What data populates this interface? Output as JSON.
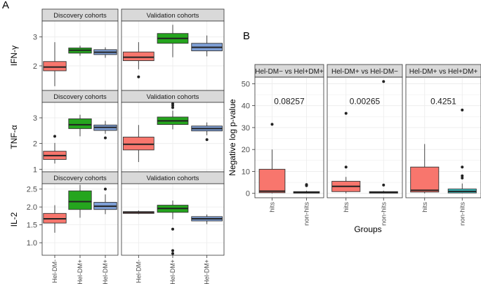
{
  "panel_labels": {
    "a": "A",
    "b": "B"
  },
  "colors": {
    "group1": "#F8766D",
    "group2": "#25A51E",
    "group3": "#7E9FD6",
    "nonhits_third": "#3BC3C4",
    "strip_fill": "#D9D9D9",
    "panel_bg": "#FFFFFF",
    "grid": "#EBEBEB",
    "border": "#333333"
  },
  "chart_data": [
    {
      "type": "box",
      "panel": "A",
      "title": "",
      "ylabels": [
        "IFN-γ",
        "TNF-α",
        "IL-2"
      ],
      "categories": [
        "Hel-DM-",
        "Hel-DM+",
        "Hel-DM+"
      ],
      "facets": [
        "Discovery cohorts",
        "Validation cohorts"
      ],
      "rows": [
        {
          "ylabel": "IFN-γ",
          "ylim": [
            1.15,
            3.55
          ],
          "yticks": [
            2,
            3
          ],
          "panels": [
            {
              "facet": "Discovery cohorts",
              "boxes": [
                {
                  "category": "Hel-DM-",
                  "min": 1.3,
                  "q1": 1.83,
                  "median": 1.96,
                  "q3": 2.15,
                  "max": 2.82,
                  "outliers": []
                },
                {
                  "category": "Hel-DM+",
                  "min": 2.35,
                  "q1": 2.44,
                  "median": 2.54,
                  "q3": 2.62,
                  "max": 2.7,
                  "outliers": []
                },
                {
                  "category": "Hel-DM+",
                  "min": 2.28,
                  "q1": 2.39,
                  "median": 2.47,
                  "q3": 2.56,
                  "max": 2.64,
                  "outliers": []
                }
              ]
            },
            {
              "facet": "Validation cohorts",
              "boxes": [
                {
                  "category": "Hel-DM-",
                  "min": 1.88,
                  "q1": 2.18,
                  "median": 2.3,
                  "q3": 2.48,
                  "max": 2.82,
                  "outliers": [
                    1.62
                  ]
                },
                {
                  "category": "Hel-DM+",
                  "min": 2.3,
                  "q1": 2.78,
                  "median": 2.95,
                  "q3": 3.12,
                  "max": 3.42,
                  "outliers": []
                },
                {
                  "category": "Hel-DM+",
                  "min": 2.33,
                  "q1": 2.52,
                  "median": 2.64,
                  "q3": 2.78,
                  "max": 3.05,
                  "outliers": []
                }
              ]
            }
          ]
        },
        {
          "ylabel": "TNF-α",
          "ylim": [
            0.9,
            3.6
          ],
          "yticks": [
            1,
            2,
            3
          ],
          "panels": [
            {
              "facet": "Discovery cohorts",
              "boxes": [
                {
                  "category": "Hel-DM-",
                  "min": 1.22,
                  "q1": 1.38,
                  "median": 1.53,
                  "q3": 1.7,
                  "max": 2.02,
                  "outliers": [
                    2.28
                  ]
                },
                {
                  "category": "Hel-DM+",
                  "min": 2.28,
                  "q1": 2.58,
                  "median": 2.73,
                  "q3": 2.96,
                  "max": 3.12,
                  "outliers": []
                },
                {
                  "category": "Hel-DM+",
                  "min": 2.38,
                  "q1": 2.51,
                  "median": 2.63,
                  "q3": 2.72,
                  "max": 2.88,
                  "outliers": [
                    2.22
                  ]
                }
              ]
            },
            {
              "facet": "Validation cohorts",
              "boxes": [
                {
                  "category": "Hel-DM-",
                  "min": 1.28,
                  "q1": 1.75,
                  "median": 1.97,
                  "q3": 2.25,
                  "max": 2.72,
                  "outliers": []
                },
                {
                  "category": "Hel-DM+",
                  "min": 2.55,
                  "q1": 2.74,
                  "median": 2.88,
                  "q3": 3.03,
                  "max": 3.28,
                  "outliers": [
                    3.4,
                    3.48,
                    3.55
                  ]
                },
                {
                  "category": "Hel-DM+",
                  "min": 2.32,
                  "q1": 2.49,
                  "median": 2.58,
                  "q3": 2.68,
                  "max": 2.82,
                  "outliers": [
                    2.15
                  ]
                }
              ]
            }
          ]
        },
        {
          "ylabel": "IL-2",
          "ylim": [
            0.65,
            2.65
          ],
          "yticks": [
            1.0,
            1.5,
            2.0,
            2.5
          ],
          "yticklabels": [
            "1.0",
            "1.5",
            "2.0",
            "2.5"
          ],
          "panels": [
            {
              "facet": "Discovery cohorts",
              "boxes": [
                {
                  "category": "Hel-DM-",
                  "min": 1.28,
                  "q1": 1.55,
                  "median": 1.67,
                  "q3": 1.82,
                  "max": 2.05,
                  "outliers": []
                },
                {
                  "category": "Hel-DM+",
                  "min": 1.7,
                  "q1": 1.93,
                  "median": 2.15,
                  "q3": 2.45,
                  "max": 2.62,
                  "outliers": []
                },
                {
                  "category": "Hel-DM+",
                  "min": 1.8,
                  "q1": 1.93,
                  "median": 2.02,
                  "q3": 2.13,
                  "max": 2.35,
                  "outliers": [
                    2.5
                  ]
                }
              ]
            },
            {
              "facet": "Validation cohorts",
              "boxes": [
                {
                  "category": "Hel-DM-",
                  "min": 1.8,
                  "q1": 1.82,
                  "median": 1.85,
                  "q3": 1.87,
                  "max": 1.9,
                  "outliers": []
                },
                {
                  "category": "Hel-DM+",
                  "min": 1.66,
                  "q1": 1.85,
                  "median": 1.96,
                  "q3": 2.05,
                  "max": 2.18,
                  "outliers": [
                    1.38,
                    0.78,
                    0.7
                  ]
                },
                {
                  "category": "Hel-DM+",
                  "min": 1.52,
                  "q1": 1.61,
                  "median": 1.67,
                  "q3": 1.73,
                  "max": 1.79,
                  "outliers": []
                }
              ]
            }
          ]
        }
      ]
    },
    {
      "type": "box",
      "panel": "B",
      "title": "",
      "xlabel": "Groups",
      "ylabel": "Negative log p-value",
      "ylim": [
        -2,
        53
      ],
      "yticks": [
        0,
        10,
        20,
        30,
        40,
        50
      ],
      "categories": [
        "hits",
        "non-hits"
      ],
      "facets": [
        {
          "label": "Hel-DM− vs Hel+DM+",
          "pvalue_label": "0.08257",
          "pvalue": 0.08257,
          "boxes": [
            {
              "category": "hits",
              "min": 0,
              "q1": 0.3,
              "median": 1.0,
              "q3": 11,
              "max": 20,
              "outliers": [
                31.5
              ]
            },
            {
              "category": "non-hits",
              "min": 0,
              "q1": 0.1,
              "median": 0.4,
              "q3": 0.8,
              "max": 1.2,
              "outliers": [
                3.5,
                4
              ]
            }
          ]
        },
        {
          "label": "Hel-DM+ vs Hel-DM−",
          "pvalue_label": "0.00265",
          "pvalue": 0.00265,
          "boxes": [
            {
              "category": "hits",
              "min": 0,
              "q1": 0.8,
              "median": 3.2,
              "q3": 5.5,
              "max": 7.5,
              "outliers": [
                12,
                36.5
              ]
            },
            {
              "category": "non-hits",
              "min": 0,
              "q1": 0.1,
              "median": 0.4,
              "q3": 0.8,
              "max": 1.2,
              "outliers": [
                3.8,
                51
              ]
            }
          ]
        },
        {
          "label": "Hel-DM+ vs Hel+DM+",
          "pvalue_label": "0.4251",
          "pvalue": 0.4251,
          "boxes": [
            {
              "category": "hits",
              "min": 0,
              "q1": 0.6,
              "median": 1.4,
              "q3": 12,
              "max": 22.5,
              "outliers": []
            },
            {
              "category": "non-hits",
              "min": 0,
              "q1": 0.2,
              "median": 0.9,
              "q3": 2,
              "max": 4.5,
              "outliers": [
                7,
                8,
                12,
                38
              ]
            }
          ]
        }
      ]
    }
  ]
}
